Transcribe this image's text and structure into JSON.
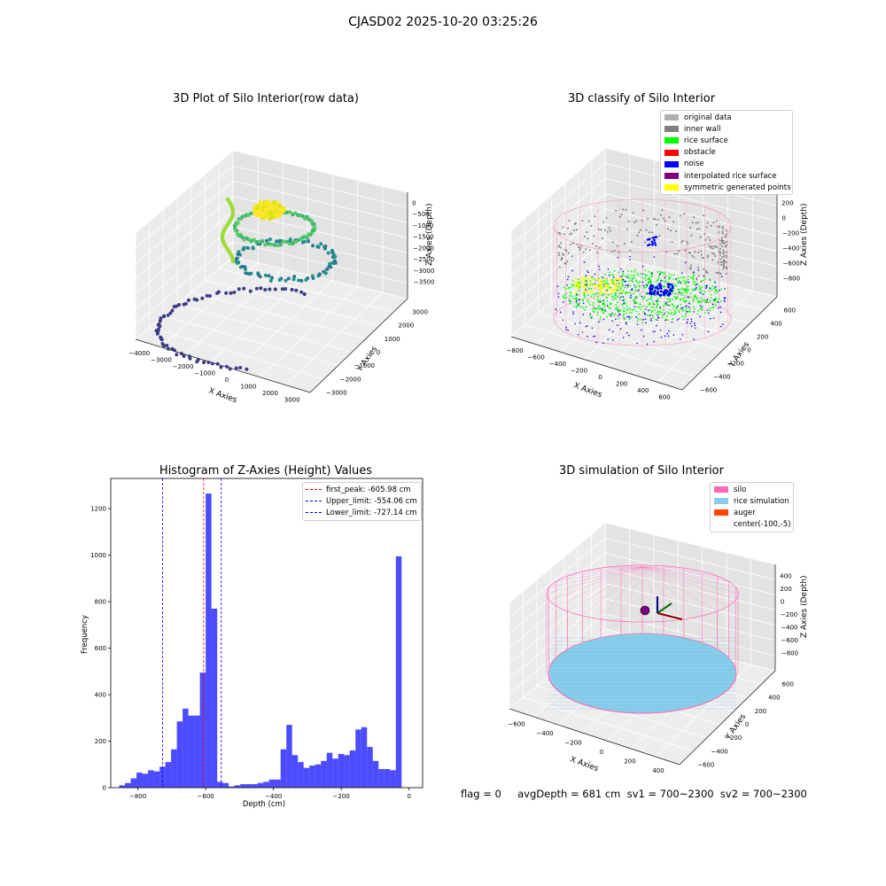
{
  "figure": {
    "title": "CJASD02 2025-10-20 03:25:26",
    "status_line": "flag = 0     avgDepth = 681 cm  sv1 = 700~2300  sv2 = 700~2300"
  },
  "panels": {
    "raw": {
      "title": "3D Plot of Silo Interior(row data)",
      "xlabel": "X Axies",
      "ylabel": "Y Axies",
      "zlabel": "Z Axies (Depth)",
      "xticks": [
        "−4000",
        "−3000",
        "−2000",
        "−1000",
        "0",
        "1000",
        "2000",
        "3000"
      ],
      "yticks": [
        "−3000",
        "−2000",
        "−1000",
        "0",
        "1000",
        "2000",
        "3000"
      ],
      "zticks": [
        "0",
        "−500",
        "−1000",
        "−1500",
        "−2000",
        "−2500",
        "−3000",
        "−3500"
      ]
    },
    "classify": {
      "title": "3D classify of Silo Interior",
      "xlabel": "X Axies",
      "ylabel": "Y Axies",
      "zlabel": "Z Axies (Depth)",
      "xticks": [
        "−800",
        "−600",
        "−400",
        "−200",
        "0",
        "200",
        "400",
        "600"
      ],
      "yticks": [
        "−600",
        "−400",
        "−200",
        "0",
        "200",
        "400",
        "600"
      ],
      "zticks": [
        "200",
        "0",
        "−200",
        "−400",
        "−600",
        "−800"
      ],
      "z_partial_tick": "0",
      "legend": [
        {
          "label": "original data",
          "color": "#b0b0b0"
        },
        {
          "label": "inner wall",
          "color": "#808080"
        },
        {
          "label": "rice surface",
          "color": "#00ff00"
        },
        {
          "label": "obstacle",
          "color": "#ff0000"
        },
        {
          "label": "noise",
          "color": "#0000ff"
        },
        {
          "label": "interpolated rice surface",
          "color": "#800080"
        },
        {
          "label": "symmetric generated points",
          "color": "#ffff00"
        }
      ]
    },
    "histogram": {
      "title": "Histogram of Z-Axies (Height) Values",
      "legend": [
        {
          "label": "first_peak: -605.98 cm",
          "color": "#ff0000"
        },
        {
          "label": "Upper_limit: -554.06 cm",
          "color": "#0000ff"
        },
        {
          "label": "Lower_limit: -727.14 cm",
          "color": "#0000ff"
        }
      ]
    },
    "simulation": {
      "title": "3D simulation of Silo Interior",
      "xlabel": "X Axies",
      "ylabel": "Y Axies",
      "zlabel": "Z Axies (Depth)",
      "xticks": [
        "−600",
        "−400",
        "−200",
        "0",
        "200",
        "400"
      ],
      "yticks": [
        "−600",
        "−400",
        "−200",
        "0",
        "200",
        "400",
        "600"
      ],
      "zticks": [
        "400",
        "200",
        "0",
        "−200",
        "−400",
        "−600",
        "−800"
      ],
      "legend": [
        {
          "label": "silo",
          "color": "#ff69b4"
        },
        {
          "label": "rice simulation",
          "color": "#87ceeb"
        },
        {
          "label": "auger",
          "color": "#ff4500"
        },
        {
          "label": "center(-100,-5)",
          "color": ""
        }
      ]
    }
  },
  "chart_data": {
    "type": "bar",
    "title": "Histogram of Z-Axies (Height) Values",
    "xlabel": "Depth (cm)",
    "ylabel": "Frequency",
    "xlim": [
      -880,
      40
    ],
    "ylim": [
      0,
      1330
    ],
    "xticks": [
      -800,
      -600,
      -400,
      -200,
      0
    ],
    "yticks": [
      0,
      200,
      400,
      600,
      800,
      1000,
      1200
    ],
    "bar_color": "#0000ff",
    "bins": {
      "start": -855,
      "width": 17,
      "values": [
        10,
        20,
        40,
        65,
        60,
        75,
        70,
        90,
        110,
        165,
        285,
        340,
        310,
        310,
        495,
        1265,
        770,
        25,
        20,
        5,
        10,
        15,
        15,
        15,
        20,
        25,
        35,
        35,
        165,
        270,
        140,
        110,
        85,
        95,
        100,
        115,
        150,
        125,
        145,
        140,
        160,
        250,
        260,
        175,
        115,
        80,
        80,
        75,
        995
      ]
    },
    "vlines": [
      {
        "name": "first_peak",
        "x": -605.98,
        "color": "#ff0000"
      },
      {
        "name": "Upper_limit",
        "x": -554.06,
        "color": "#0000ff"
      },
      {
        "name": "Lower_limit",
        "x": -727.14,
        "color": "#0000ff"
      }
    ]
  }
}
